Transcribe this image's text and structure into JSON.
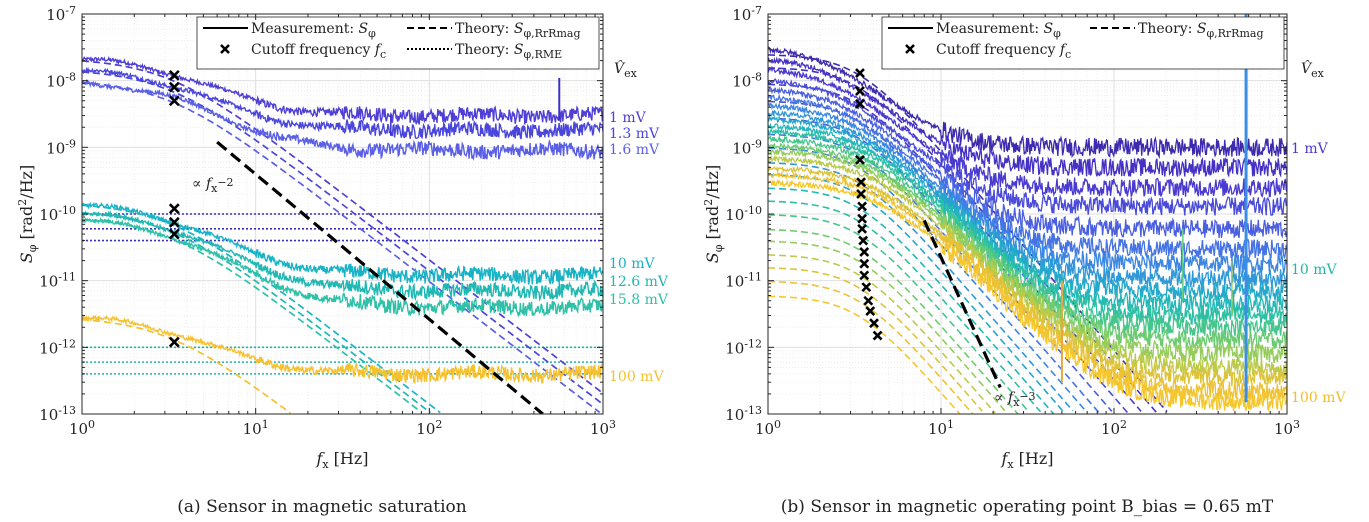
{
  "figure": {
    "panels": [
      {
        "caption": "(a) Sensor in magnetic saturation",
        "xlabel": "f_x [Hz]",
        "ylabel": "S_φ [rad²/Hz]",
        "legend": {
          "measurement": "Measurement: S_φ",
          "theory_rr": "Theory: S_φ,RrRmag",
          "cutoff": "Cutoff frequency f_c",
          "theory_rme": "Theory: S_φ,RME"
        },
        "vex_header": "V̂_ex",
        "annotation": "∝ f_x^-2"
      },
      {
        "caption": "(b) Sensor in magnetic operating point B_bias = 0.65 mT",
        "xlabel": "f_x [Hz]",
        "ylabel": "S_φ [rad²/Hz]",
        "legend": {
          "measurement": "Measurement: S_φ",
          "theory_rr": "Theory: S_φ,RrRmag",
          "cutoff": "Cutoff frequency f_c"
        },
        "vex_header": "V̂_ex",
        "annotation": "∝ f_x^-3"
      }
    ],
    "x_ticks": [
      "10^0",
      "10^1",
      "10^2",
      "10^3"
    ],
    "y_ticks": [
      "10^-13",
      "10^-12",
      "10^-11",
      "10^-10",
      "10^-9",
      "10^-8",
      "10^-7"
    ]
  },
  "chart_data": [
    {
      "type": "line",
      "xscale": "log",
      "yscale": "log",
      "xlim": [
        1,
        1000
      ],
      "ylim": [
        1e-13,
        1e-07
      ],
      "grid": true,
      "legend_position": "top-right",
      "series": [
        {
          "name": "1 mV",
          "color": "#4f3fd6",
          "floor": 3e-09,
          "fc": 3.4,
          "low": 1.9e-08
        },
        {
          "name": "1.3 mV",
          "color": "#4a46dc",
          "floor": 1.8e-09,
          "fc": 3.4,
          "low": 1.3e-08
        },
        {
          "name": "1.6 mV",
          "color": "#5a5fe6",
          "floor": 9e-10,
          "fc": 3.4,
          "low": 9e-09
        },
        {
          "name": "10 mV",
          "color": "#19b3c6",
          "floor": 1.2e-11,
          "fc": 3.4,
          "low": 1.3e-10
        },
        {
          "name": "12.6 mV",
          "color": "#1fb8b3",
          "floor": 7e-12,
          "fc": 3.4,
          "low": 1e-10
        },
        {
          "name": "15.8 mV",
          "color": "#2fc0a8",
          "floor": 4e-12,
          "fc": 3.4,
          "low": 8e-11
        },
        {
          "name": "100 mV",
          "color": "#f6c12e",
          "floor": 4e-13,
          "fc": 3.4,
          "low": 2.5e-12
        }
      ],
      "cutoff_points_hz": 3.4,
      "cutoff_values": [
        1.2e-08,
        8e-09,
        5e-09,
        1.2e-10,
        7.5e-11,
        5e-11,
        1.2e-12
      ],
      "rme_levels": [
        1e-10,
        6e-11,
        4e-11,
        1e-12,
        6e-13,
        4e-13
      ],
      "rme_colors": [
        "#3a2fc0",
        "#3a2fc0",
        "#3a2fc0",
        "#22b5a8",
        "#22b5a8",
        "#22b5a8"
      ],
      "slope_line": {
        "exponent": -2,
        "x": [
          6,
          450
        ],
        "y": [
          1.2e-09,
          1e-13
        ]
      }
    },
    {
      "type": "line",
      "xscale": "log",
      "yscale": "log",
      "xlim": [
        1,
        1000
      ],
      "ylim": [
        1e-13,
        1e-07
      ],
      "grid": true,
      "legend_position": "top-right",
      "series_labels": [
        {
          "name": "1 mV",
          "color": "#4a3ad0"
        },
        {
          "name": "10 mV",
          "color": "#22b7a8"
        },
        {
          "name": "100 mV",
          "color": "#f2be26"
        }
      ],
      "series_count": 18,
      "cutoff_x": [
        3.4,
        3.4,
        3.4,
        3.4,
        3.45,
        3.45,
        3.5,
        3.5,
        3.5,
        3.55,
        3.6,
        3.6,
        3.6,
        3.7,
        3.8,
        3.9,
        4.1,
        4.3
      ],
      "cutoff_values": [
        1.3e-08,
        7e-09,
        4.5e-09,
        6.5e-10,
        3e-10,
        2e-10,
        1.3e-10,
        8.5e-11,
        6e-11,
        4e-11,
        2.7e-11,
        1.8e-11,
        1.2e-11,
        8e-12,
        5e-12,
        3.5e-12,
        2.3e-12,
        1.5e-12
      ],
      "slope_line": {
        "exponent": -3,
        "x": [
          8,
          22
        ],
        "y": [
          8e-11,
          2.5e-13
        ]
      }
    }
  ]
}
